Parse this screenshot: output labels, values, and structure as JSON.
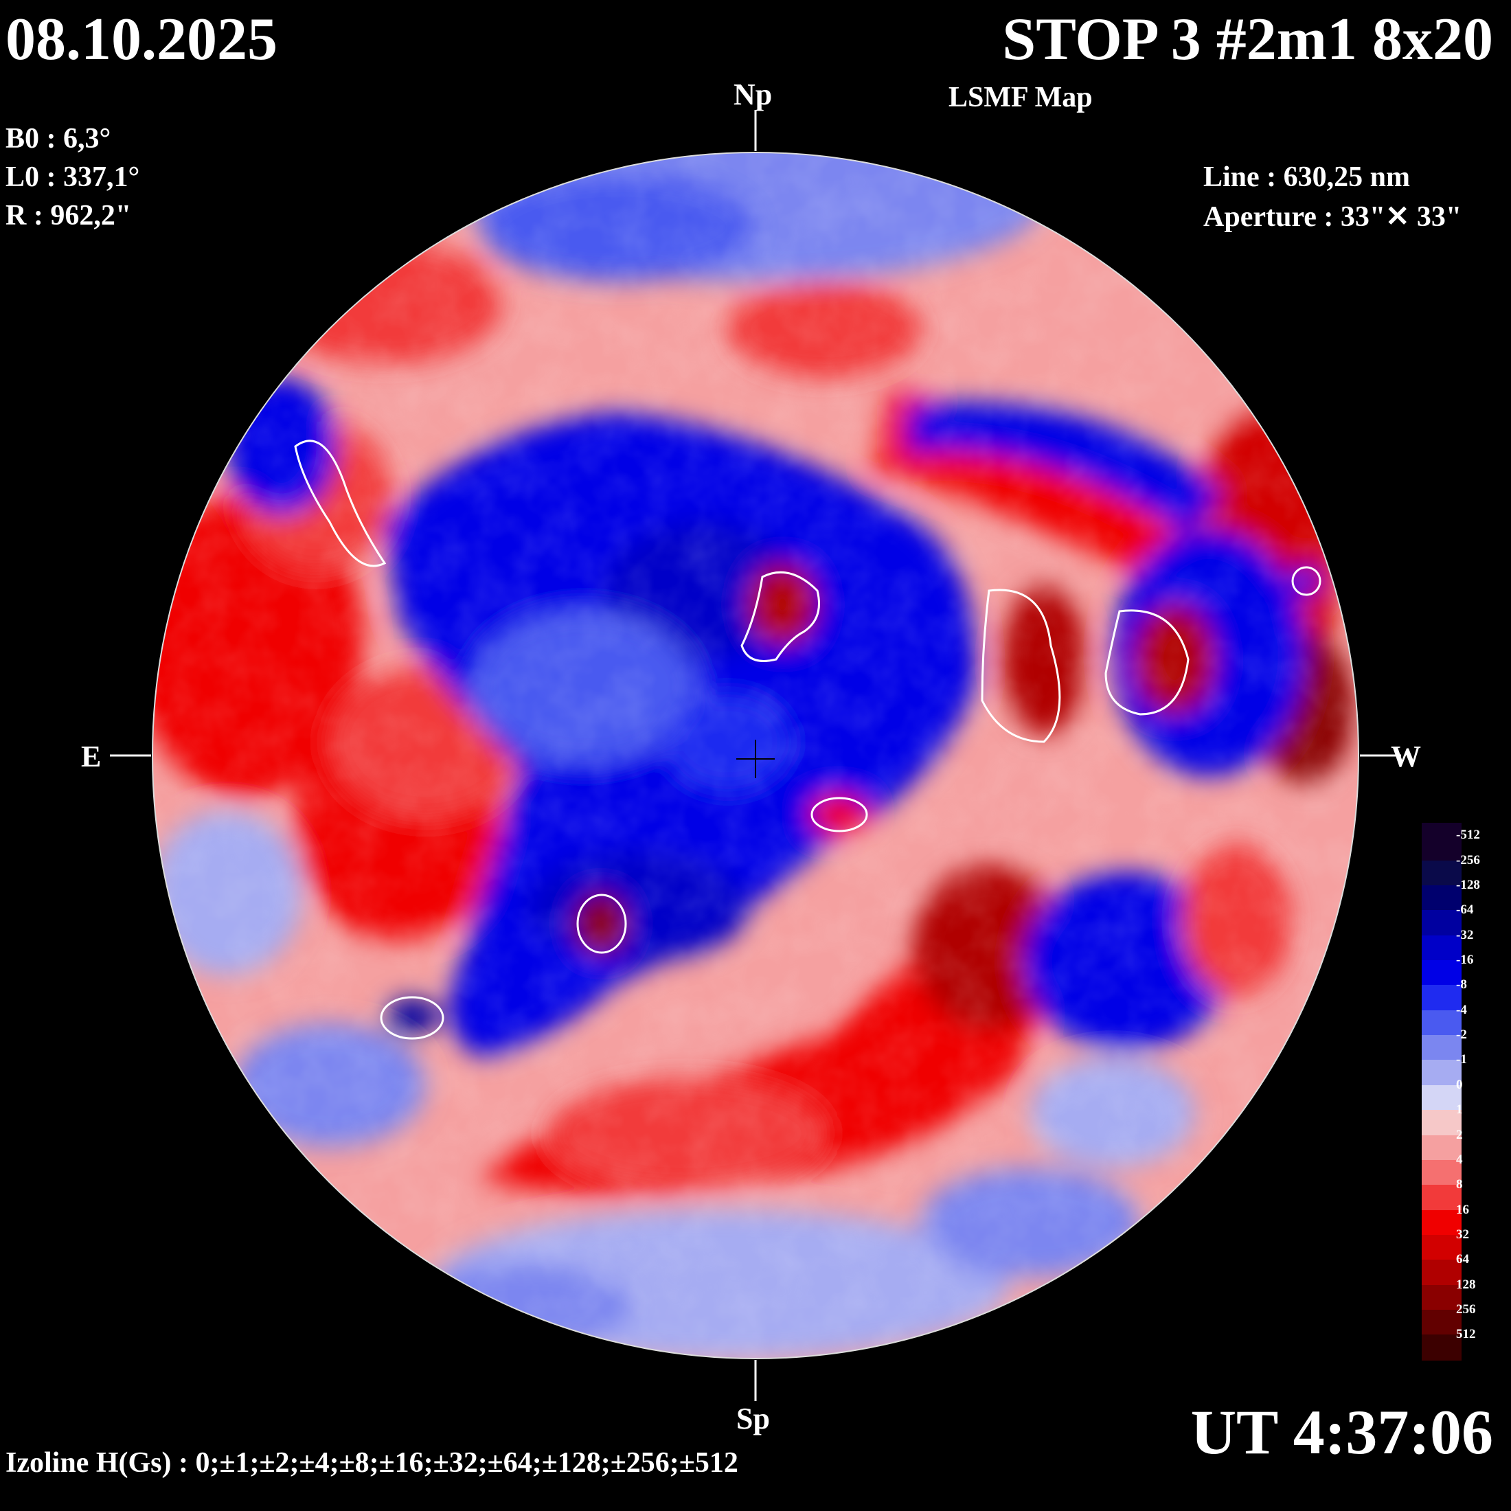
{
  "header": {
    "date": "08.10.2025",
    "title": "STOP 3 #2m1 8x20",
    "subtitle": "LSMF  Map"
  },
  "params": {
    "b0": "B0 : 6,3°",
    "l0": "L0 : 337,1°",
    "r": "R  : 962,2\""
  },
  "instrument": {
    "line": "Line :  630,25 nm",
    "aperture": "Aperture : 33\"✕ 33\""
  },
  "directions": {
    "north": "Np",
    "south": "Sp",
    "east": "E",
    "west": "W"
  },
  "time": "UT 4:37:06",
  "izoline": "Izoline H(Gs) : 0;±1;±2;±4;±8;±16;±32;±64;±128;±256;±512",
  "colorbar": {
    "levels": [
      {
        "label": "-512",
        "color": "#14002a"
      },
      {
        "label": "-256",
        "color": "#0a0a4a"
      },
      {
        "label": "-128",
        "color": "#00006e"
      },
      {
        "label": "-64",
        "color": "#0000a0"
      },
      {
        "label": "-32",
        "color": "#0000c8"
      },
      {
        "label": "-16",
        "color": "#0000e6"
      },
      {
        "label": "-8",
        "color": "#1f2bf0"
      },
      {
        "label": "-4",
        "color": "#4a5af0"
      },
      {
        "label": "-2",
        "color": "#7b86f0"
      },
      {
        "label": "-1",
        "color": "#a6acf2"
      },
      {
        "label": "0",
        "color": "#d4d6f6"
      },
      {
        "label": "1",
        "color": "#f6c8c8"
      },
      {
        "label": "2",
        "color": "#f5a0a0"
      },
      {
        "label": "4",
        "color": "#f57070"
      },
      {
        "label": "8",
        "color": "#f23a3a"
      },
      {
        "label": "16",
        "color": "#f00000"
      },
      {
        "label": "32",
        "color": "#d20000"
      },
      {
        "label": "64",
        "color": "#b00000"
      },
      {
        "label": "128",
        "color": "#8a0000"
      },
      {
        "label": "256",
        "color": "#620000"
      },
      {
        "label": "512",
        "color": "#3c0000"
      }
    ]
  }
}
